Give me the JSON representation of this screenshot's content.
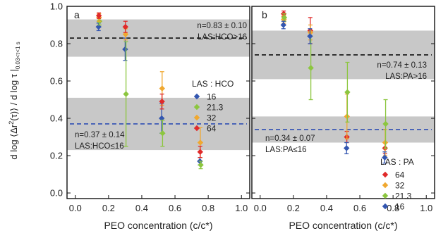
{
  "colors": {
    "16": "#3356b0",
    "21.3": "#8cc63f",
    "32": "#f0a830",
    "64": "#e02a2a",
    "band": "#c8c8c8",
    "frame": "#111111",
    "high_mean_line": "#111111",
    "low_mean_line": "#2f4fb3"
  },
  "ylabel": "d log ⟨Δr²(τ)⟩ / d log τ |0.03<τ<1 s",
  "chart_data": [
    {
      "type": "scatter",
      "panel": "a",
      "xlabel": "PEO concentration (c/c*)",
      "xlim": [
        -0.05,
        1.05
      ],
      "ylim": [
        -0.03,
        1.0
      ],
      "xticks": [
        "0.0",
        "0.2",
        "0.4",
        "0.6",
        "0.8",
        "1.0"
      ],
      "yticks": [
        "0.0",
        "0.2",
        "0.4",
        "0.6",
        "0.8",
        "1.0"
      ],
      "legend_title": "LAS : HCO",
      "legend_position": "right-middle",
      "series": [
        {
          "name": "16",
          "color_key": "16",
          "points": [
            {
              "x": 0.14,
              "y": 0.89,
              "err": 0.02
            },
            {
              "x": 0.3,
              "y": 0.77,
              "err": 0.06
            },
            {
              "x": 0.52,
              "y": 0.4,
              "err": 0.08
            },
            {
              "x": 0.75,
              "y": 0.17,
              "err": 0.02
            }
          ]
        },
        {
          "name": "21.3",
          "color_key": "21.3",
          "points": [
            {
              "x": 0.14,
              "y": 0.92,
              "err": 0.02
            },
            {
              "x": 0.3,
              "y": 0.53,
              "err": 0.28
            },
            {
              "x": 0.52,
              "y": 0.32,
              "err": 0.07
            },
            {
              "x": 0.75,
              "y": 0.15,
              "err": 0.02
            }
          ]
        },
        {
          "name": "32",
          "color_key": "32",
          "points": [
            {
              "x": 0.14,
              "y": 0.94,
              "err": 0.02
            },
            {
              "x": 0.3,
              "y": 0.85,
              "err": 0.03
            },
            {
              "x": 0.52,
              "y": 0.56,
              "err": 0.09
            },
            {
              "x": 0.75,
              "y": 0.27,
              "err": 0.08
            }
          ]
        },
        {
          "name": "64",
          "color_key": "64",
          "points": [
            {
              "x": 0.14,
              "y": 0.95,
              "err": 0.015
            },
            {
              "x": 0.3,
              "y": 0.89,
              "err": 0.03
            },
            {
              "x": 0.52,
              "y": 0.49,
              "err": 0.04
            },
            {
              "x": 0.75,
              "y": 0.22,
              "err": 0.03
            }
          ]
        }
      ],
      "bands": [
        {
          "mean": 0.83,
          "sd": 0.1,
          "label1": "n=0.83 ± 0.10",
          "label2": "LAS:HCO>16",
          "line": "black"
        },
        {
          "mean": 0.37,
          "sd": 0.14,
          "label1": "n=0.37 ± 0.14",
          "label2": "LAS:HCO≤16",
          "line": "blue"
        }
      ]
    },
    {
      "type": "scatter",
      "panel": "b",
      "xlabel": "PEO concentration (c/c*)",
      "xlim": [
        -0.05,
        1.05
      ],
      "ylim": [
        -0.03,
        1.0
      ],
      "xticks": [
        "0.0",
        "0.2",
        "0.4",
        "0.6",
        "0.8",
        "1.0"
      ],
      "legend_title": "LAS : PA",
      "legend_position": "bottom-right",
      "series": [
        {
          "name": "64",
          "color_key": "64",
          "points": [
            {
              "x": 0.14,
              "y": 0.96,
              "err": 0.015
            },
            {
              "x": 0.3,
              "y": 0.87,
              "err": 0.07
            },
            {
              "x": 0.52,
              "y": 0.3,
              "err": 0.03
            },
            {
              "x": 0.75,
              "y": 0.24,
              "err": 0.03
            }
          ]
        },
        {
          "name": "32",
          "color_key": "32",
          "points": [
            {
              "x": 0.14,
              "y": 0.93,
              "err": 0.02
            },
            {
              "x": 0.3,
              "y": 0.86,
              "err": 0.04
            },
            {
              "x": 0.52,
              "y": 0.41,
              "err": 0.12
            },
            {
              "x": 0.75,
              "y": 0.27,
              "err": 0.07
            }
          ]
        },
        {
          "name": "21.3",
          "color_key": "21.3",
          "points": [
            {
              "x": 0.14,
              "y": 0.94,
              "err": 0.02
            },
            {
              "x": 0.3,
              "y": 0.67,
              "err": 0.17
            },
            {
              "x": 0.52,
              "y": 0.54,
              "err": 0.16
            },
            {
              "x": 0.75,
              "y": 0.37,
              "err": 0.13
            }
          ]
        },
        {
          "name": "16",
          "color_key": "16",
          "points": [
            {
              "x": 0.14,
              "y": 0.9,
              "err": 0.02
            },
            {
              "x": 0.3,
              "y": 0.84,
              "err": 0.04
            },
            {
              "x": 0.52,
              "y": 0.24,
              "err": 0.03
            },
            {
              "x": 0.75,
              "y": 0.19,
              "err": 0.03
            }
          ]
        }
      ],
      "bands": [
        {
          "mean": 0.74,
          "sd": 0.13,
          "label1": "n=0.74 ± 0.13",
          "label2": "LAS:PA>16",
          "line": "black"
        },
        {
          "mean": 0.34,
          "sd": 0.07,
          "label1": "n=0.34 ± 0.07",
          "label2": "LAS:PA≤16",
          "line": "blue"
        }
      ]
    }
  ]
}
